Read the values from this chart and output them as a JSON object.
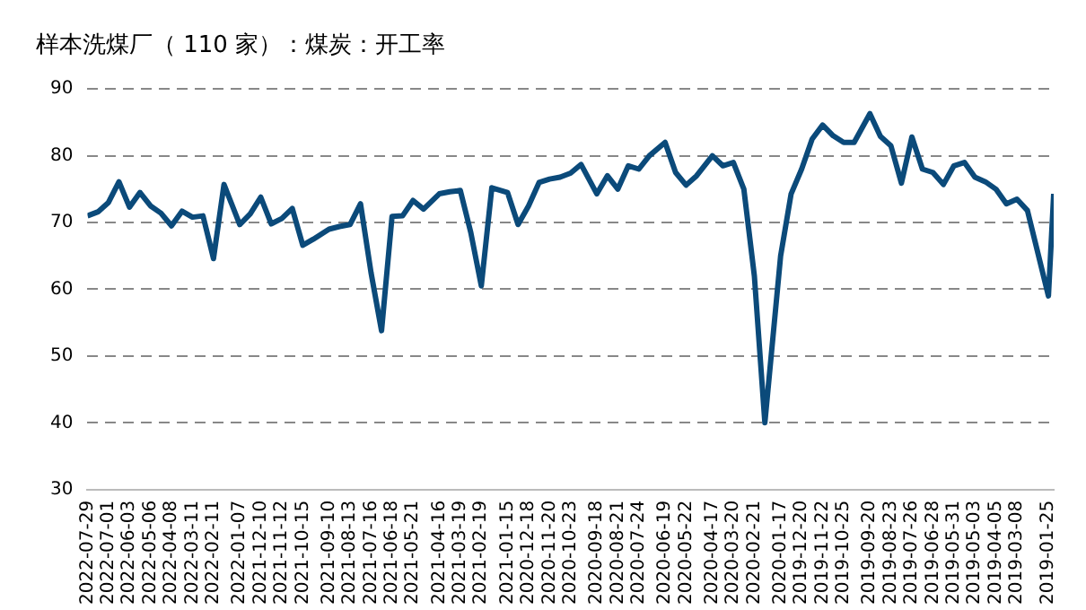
{
  "chart_data": {
    "type": "line",
    "title": "样本洗煤厂（ 110 家）：煤炭：开工率",
    "x": [
      "2022-07-29",
      "2022-07-15",
      "2022-07-01",
      "2022-06-17",
      "2022-06-03",
      "2022-05-20",
      "2022-05-06",
      "2022-04-22",
      "2022-04-08",
      "2022-03-25",
      "2022-03-11",
      "2022-02-25",
      "2022-02-11",
      "2022-01-28",
      "2022-01-07",
      "2021-12-24",
      "2021-12-10",
      "2021-11-26",
      "2021-11-12",
      "2021-10-29",
      "2021-10-15",
      "2021-10-01",
      "2021-09-10",
      "2021-08-27",
      "2021-08-13",
      "2021-07-30",
      "2021-07-16",
      "2021-07-02",
      "2021-06-18",
      "2021-06-04",
      "2021-05-21",
      "2021-05-07",
      "2021-04-16",
      "2021-04-02",
      "2021-03-19",
      "2021-03-05",
      "2021-02-19",
      "2021-02-05",
      "2021-01-15",
      "2021-01-01",
      "2020-12-18",
      "2020-12-04",
      "2020-11-20",
      "2020-11-06",
      "2020-10-23",
      "2020-10-09",
      "2020-09-18",
      "2020-09-04",
      "2020-08-21",
      "2020-08-07",
      "2020-07-24",
      "2020-07-10",
      "2020-06-19",
      "2020-06-05",
      "2020-05-22",
      "2020-05-08",
      "2020-04-17",
      "2020-04-03",
      "2020-03-20",
      "2020-03-06",
      "2020-02-21",
      "2020-02-07",
      "2020-01-17",
      "2020-01-03",
      "2019-12-20",
      "2019-12-06",
      "2019-11-22",
      "2019-11-08",
      "2019-10-25",
      "2019-10-11",
      "2019-09-20",
      "2019-09-06",
      "2019-08-23",
      "2019-08-09",
      "2019-07-26",
      "2019-07-12",
      "2019-06-28",
      "2019-06-14",
      "2019-05-31",
      "2019-05-17",
      "2019-05-03",
      "2019-04-19",
      "2019-04-05",
      "2019-03-22",
      "2019-03-08",
      "2019-02-22",
      "2019-01-25",
      "2019-01-18"
    ],
    "series": [
      {
        "color": "#0b4a7a",
        "values": [
          71.0,
          71.6,
          73.0,
          76.1,
          72.3,
          74.5,
          72.5,
          71.4,
          69.5,
          71.7,
          70.8,
          71.0,
          64.6,
          75.7,
          69.7,
          71.3,
          73.8,
          69.8,
          70.6,
          72.1,
          66.6,
          67.5,
          69.0,
          69.4,
          69.7,
          72.8,
          62.5,
          53.8,
          70.9,
          71.0,
          73.3,
          72.0,
          74.3,
          74.6,
          74.8,
          68.5,
          60.5,
          75.2,
          74.5,
          69.7,
          72.5,
          76.0,
          76.5,
          76.8,
          77.4,
          78.7,
          74.3,
          77.0,
          75.0,
          78.5,
          78.0,
          80.0,
          82.0,
          77.5,
          75.6,
          77.0,
          80.0,
          78.5,
          79.0,
          75.0,
          62.0,
          40.0,
          65.0,
          74.3,
          78.0,
          82.5,
          84.6,
          83.0,
          82.0,
          82.0,
          86.3,
          82.9,
          81.5,
          75.9,
          82.8,
          78.0,
          77.5,
          75.7,
          78.5,
          79.0,
          76.8,
          76.1,
          75.0,
          72.8,
          73.5,
          71.8,
          59.0,
          74.3
        ]
      }
    ],
    "xlim": [
      "2022-07-29",
      "2019-01-18"
    ],
    "xticks": [
      "2022-07-29",
      "2022-07-01",
      "2022-06-03",
      "2022-05-06",
      "2022-04-08",
      "2022-03-11",
      "2022-02-11",
      "2022-01-07",
      "2021-12-10",
      "2021-11-12",
      "2021-10-15",
      "2021-09-10",
      "2021-08-13",
      "2021-07-16",
      "2021-06-18",
      "2021-05-21",
      "2021-04-16",
      "2021-03-19",
      "2021-02-19",
      "2021-01-15",
      "2020-12-18",
      "2020-11-20",
      "2020-10-23",
      "2020-09-18",
      "2020-08-21",
      "2020-07-24",
      "2020-06-19",
      "2020-05-22",
      "2020-04-17",
      "2020-03-20",
      "2020-02-21",
      "2020-01-17",
      "2019-12-20",
      "2019-11-22",
      "2019-10-25",
      "2019-09-20",
      "2019-08-23",
      "2019-07-26",
      "2019-06-28",
      "2019-05-31",
      "2019-05-03",
      "2019-04-05",
      "2019-03-08",
      "2019-01-25"
    ],
    "ylim": [
      30,
      90
    ],
    "yticks": [
      30,
      40,
      50,
      60,
      70,
      80,
      90
    ],
    "grid": "y",
    "marker": "none"
  }
}
